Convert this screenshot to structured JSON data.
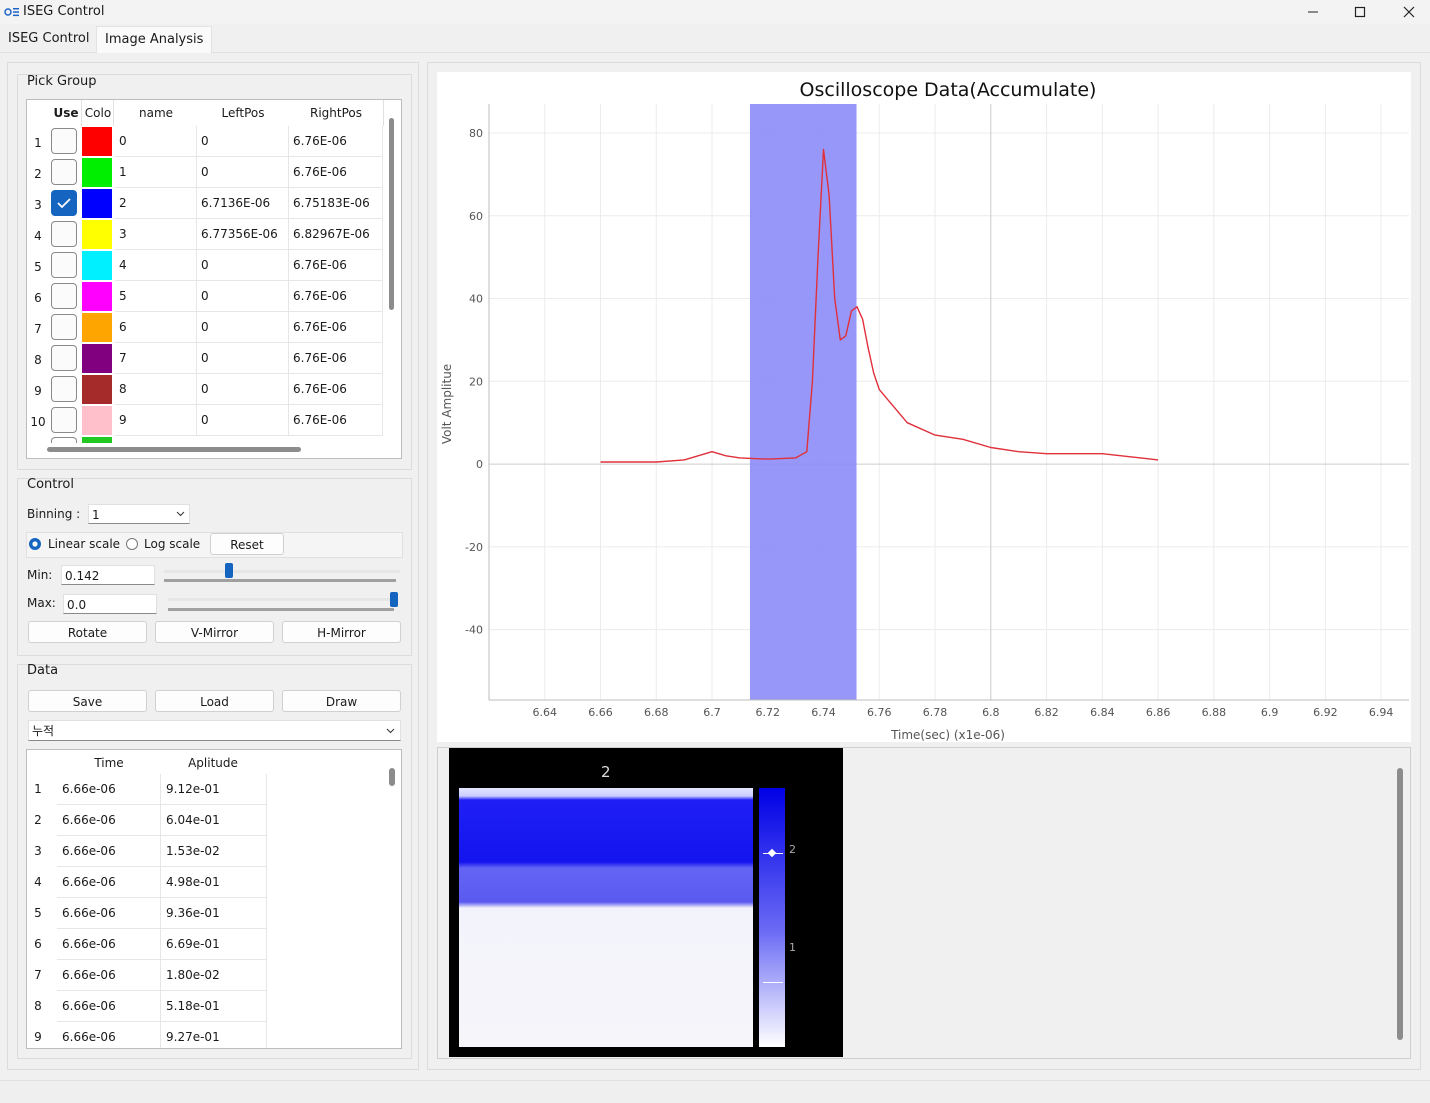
{
  "window": {
    "title": "ISEG Control"
  },
  "tabs": [
    {
      "label": "ISEG Control"
    },
    {
      "label": "Image Analysis"
    }
  ],
  "pick_group": {
    "title": "Pick Group",
    "columns": [
      "Use",
      "Colo",
      "name",
      "LeftPos",
      "RightPos"
    ],
    "rows": [
      {
        "num": "1",
        "checked": false,
        "color": "#ff0000",
        "name": "0",
        "left": "0",
        "right": "6.76E-06"
      },
      {
        "num": "2",
        "checked": false,
        "color": "#00ee00",
        "name": "1",
        "left": "0",
        "right": "6.76E-06"
      },
      {
        "num": "3",
        "checked": true,
        "color": "#0000ff",
        "name": "2",
        "left": "6.7136E-06",
        "right": "6.75183E-06"
      },
      {
        "num": "4",
        "checked": false,
        "color": "#ffff00",
        "name": "3",
        "left": "6.77356E-06",
        "right": "6.82967E-06"
      },
      {
        "num": "5",
        "checked": false,
        "color": "#00f0ff",
        "name": "4",
        "left": "0",
        "right": "6.76E-06"
      },
      {
        "num": "6",
        "checked": false,
        "color": "#ff00ff",
        "name": "5",
        "left": "0",
        "right": "6.76E-06"
      },
      {
        "num": "7",
        "checked": false,
        "color": "#ffa500",
        "name": "6",
        "left": "0",
        "right": "6.76E-06"
      },
      {
        "num": "8",
        "checked": false,
        "color": "#800080",
        "name": "7",
        "left": "0",
        "right": "6.76E-06"
      },
      {
        "num": "9",
        "checked": false,
        "color": "#a52a2a",
        "name": "8",
        "left": "0",
        "right": "6.76E-06"
      },
      {
        "num": "10",
        "checked": false,
        "color": "#ffc0cb",
        "name": "9",
        "left": "0",
        "right": "6.76E-06"
      }
    ]
  },
  "control": {
    "title": "Control",
    "binning_label": "Binning :",
    "binning_value": "1",
    "linear_label": "Linear scale",
    "log_label": "Log scale",
    "reset_label": "Reset",
    "min_label": "Min:",
    "min_value": "0.142",
    "min_slider_fraction": 0.28,
    "max_label": "Max:",
    "max_value": "0.0",
    "max_slider_fraction": 1.0,
    "rotate_label": "Rotate",
    "vmirror_label": "V-Mirror",
    "hmirror_label": "H-Mirror"
  },
  "data_panel": {
    "title": "Data",
    "save_label": "Save",
    "load_label": "Load",
    "draw_label": "Draw",
    "mode_value": "누적",
    "columns": [
      "Time",
      "Aplitude"
    ],
    "rows": [
      {
        "num": "1",
        "time": "6.66e-06",
        "amp": "9.12e-01"
      },
      {
        "num": "2",
        "time": "6.66e-06",
        "amp": "6.04e-01"
      },
      {
        "num": "3",
        "time": "6.66e-06",
        "amp": "1.53e-02"
      },
      {
        "num": "4",
        "time": "6.66e-06",
        "amp": "4.98e-01"
      },
      {
        "num": "5",
        "time": "6.66e-06",
        "amp": "9.36e-01"
      },
      {
        "num": "6",
        "time": "6.66e-06",
        "amp": "6.69e-01"
      },
      {
        "num": "7",
        "time": "6.66e-06",
        "amp": "1.80e-02"
      },
      {
        "num": "8",
        "time": "6.66e-06",
        "amp": "5.18e-01"
      },
      {
        "num": "9",
        "time": "6.66e-06",
        "amp": "9.27e-01"
      }
    ]
  },
  "chart_data": {
    "type": "line",
    "title": "Oscilloscope Data(Accumulate)",
    "xlabel": "Time(sec) (x1e-06)",
    "ylabel": "Volt Amplitue",
    "xlim": [
      6.62,
      6.95
    ],
    "ylim": [
      -57,
      87
    ],
    "xticks": [
      6.64,
      6.66,
      6.68,
      6.7,
      6.72,
      6.74,
      6.76,
      6.78,
      6.8,
      6.82,
      6.84,
      6.86,
      6.88,
      6.9,
      6.92,
      6.94
    ],
    "yticks": [
      80,
      60,
      40,
      20,
      0,
      -20,
      -40
    ],
    "grid": true,
    "highlight_region": {
      "from": 6.7136,
      "to": 6.75183,
      "color": "#8c8cf8"
    },
    "series": [
      {
        "color": "#e0303a",
        "x": [
          6.66,
          6.68,
          6.69,
          6.695,
          6.7,
          6.705,
          6.71,
          6.72,
          6.73,
          6.734,
          6.736,
          6.738,
          6.74,
          6.742,
          6.744,
          6.746,
          6.748,
          6.75,
          6.752,
          6.754,
          6.756,
          6.758,
          6.76,
          6.765,
          6.77,
          6.78,
          6.79,
          6.8,
          6.81,
          6.82,
          6.84,
          6.86
        ],
        "y": [
          0.5,
          0.5,
          1.0,
          2.0,
          3.0,
          2.0,
          1.5,
          1.2,
          1.5,
          3.0,
          20.0,
          50.0,
          76.0,
          65.0,
          40.0,
          30.0,
          31.0,
          37.0,
          38.0,
          35.0,
          28.0,
          22.0,
          18.0,
          14.0,
          10.0,
          7.0,
          6.0,
          4.0,
          3.0,
          2.5,
          2.5,
          1.0
        ]
      }
    ]
  },
  "image_preview": {
    "title": "2",
    "colorbar_labels": [
      "2",
      "1"
    ]
  }
}
